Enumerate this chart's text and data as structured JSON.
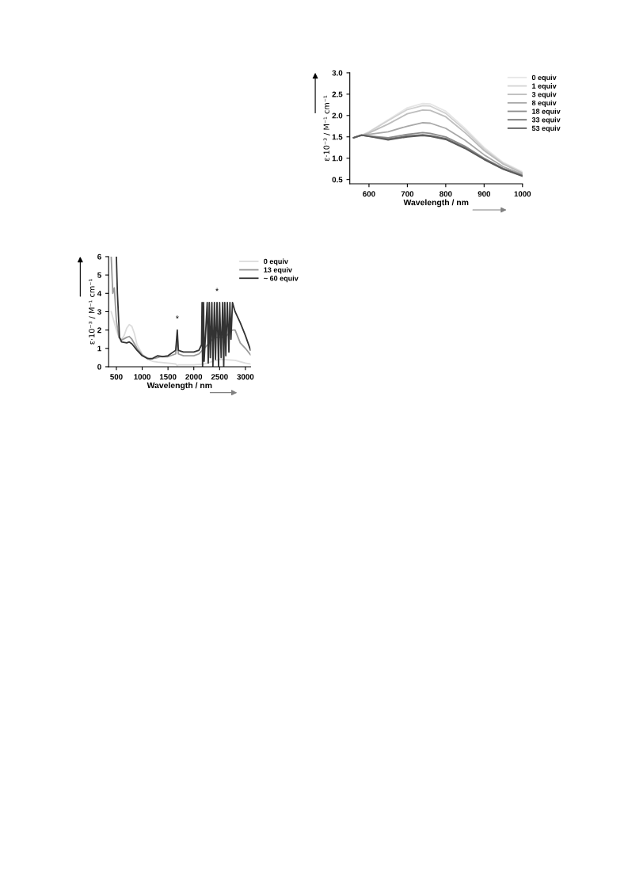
{
  "chart_data": [
    {
      "type": "line",
      "xlabel": "Wavelength / nm",
      "ylabel": "ε·10⁻³ / M⁻¹ cm⁻¹",
      "x": [
        560,
        580,
        600,
        650,
        700,
        740,
        760,
        800,
        850,
        900,
        950,
        1000
      ],
      "xlim": [
        550,
        1000
      ],
      "xticks": [
        600,
        700,
        800,
        900,
        1000
      ],
      "ylim": [
        0.4,
        3.0
      ],
      "yticks": [
        0.5,
        {
          "value": 1,
          "label": "1.0"
        },
        1.5,
        {
          "value": 2,
          "label": "2.0"
        },
        2.5,
        {
          "value": 3,
          "label": "3.0"
        }
      ],
      "legend": "top right",
      "grid": false,
      "series": [
        {
          "name": "0 equiv",
          "color": "#e6e6e6",
          "values": [
            1.48,
            1.53,
            1.62,
            1.9,
            2.18,
            2.28,
            2.27,
            2.1,
            1.7,
            1.25,
            0.9,
            0.68
          ]
        },
        {
          "name": "1 equiv",
          "color": "#d2d2d2",
          "values": [
            1.48,
            1.53,
            1.61,
            1.88,
            2.14,
            2.23,
            2.22,
            2.05,
            1.66,
            1.22,
            0.88,
            0.66
          ]
        },
        {
          "name": "3 equiv",
          "color": "#bdbdbd",
          "values": [
            1.48,
            1.53,
            1.59,
            1.8,
            2.04,
            2.13,
            2.12,
            1.97,
            1.6,
            1.18,
            0.86,
            0.65
          ]
        },
        {
          "name": "8 equiv",
          "color": "#a8a8a8",
          "values": [
            1.48,
            1.54,
            1.56,
            1.62,
            1.75,
            1.83,
            1.82,
            1.7,
            1.42,
            1.08,
            0.8,
            0.62
          ]
        },
        {
          "name": "18 equiv",
          "color": "#8c8c8c",
          "values": [
            1.48,
            1.54,
            1.52,
            1.48,
            1.56,
            1.6,
            1.58,
            1.5,
            1.28,
            1.0,
            0.76,
            0.6
          ]
        },
        {
          "name": "33 equiv",
          "color": "#737373",
          "values": [
            1.48,
            1.54,
            1.51,
            1.45,
            1.52,
            1.55,
            1.53,
            1.46,
            1.25,
            0.98,
            0.75,
            0.59
          ]
        },
        {
          "name": "53 equiv",
          "color": "#5a5a5a",
          "values": [
            1.48,
            1.54,
            1.51,
            1.43,
            1.5,
            1.53,
            1.51,
            1.44,
            1.23,
            0.97,
            0.74,
            0.58
          ]
        }
      ]
    },
    {
      "type": "line",
      "xlabel": "Wavelength / nm",
      "ylabel": "ε·10⁻³ / M⁻¹ cm⁻¹",
      "xlim": [
        350,
        3100
      ],
      "xticks": [
        500,
        1000,
        1500,
        2000,
        2500,
        3000
      ],
      "ylim": [
        0,
        6
      ],
      "yticks": [
        0,
        1,
        2,
        3,
        4,
        5,
        6
      ],
      "legend": "top right",
      "grid": false,
      "annotations": [
        {
          "text": "*",
          "x": 1680,
          "y": 2.0
        },
        {
          "text": "*",
          "x": 2450,
          "y": 3.5
        }
      ],
      "series": [
        {
          "name": "0 equiv",
          "color": "#dcdcdc",
          "x": [
            400,
            450,
            500,
            550,
            600,
            650,
            700,
            750,
            800,
            850,
            900,
            1000,
            1100,
            1200,
            1300,
            1500,
            1650,
            1680,
            1700,
            2000,
            2200,
            2500,
            2800,
            3000,
            3100
          ],
          "values": [
            3.0,
            2.5,
            2.0,
            1.6,
            1.5,
            1.7,
            2.1,
            2.3,
            2.2,
            1.8,
            1.2,
            0.7,
            0.4,
            0.3,
            0.25,
            0.2,
            0.15,
            0.05,
            0.1,
            0.1,
            0.15,
            0.4,
            0.35,
            0.2,
            0.15
          ]
        },
        {
          "name": "13 equiv",
          "color": "#9a9a9a",
          "x": [
            400,
            430,
            460,
            500,
            550,
            600,
            700,
            750,
            800,
            900,
            1000,
            1150,
            1300,
            1350,
            1500,
            1650,
            1680,
            1700,
            1800,
            2000,
            2100,
            2200,
            2400,
            2600,
            2750,
            2800,
            2900,
            3000,
            3100
          ],
          "values": [
            6.0,
            4.0,
            4.3,
            2.5,
            1.6,
            1.45,
            1.6,
            1.65,
            1.5,
            1.0,
            0.65,
            0.4,
            0.5,
            0.55,
            0.55,
            0.7,
            1.7,
            0.7,
            0.6,
            0.6,
            0.7,
            1.0,
            1.6,
            1.6,
            2.0,
            2.0,
            1.3,
            1.0,
            0.65
          ]
        },
        {
          "name": "~ 60 equiv",
          "color": "#333333",
          "x": [
            500,
            520,
            560,
            600,
            700,
            750,
            800,
            900,
            1000,
            1100,
            1200,
            1300,
            1400,
            1500,
            1650,
            1680,
            1700,
            1750,
            1800,
            2000,
            2100,
            2150,
            2160,
            2170,
            2190,
            2200,
            2260,
            2280,
            2300,
            2320,
            2350,
            2370,
            2400,
            2420,
            2450,
            2480,
            2500,
            2530,
            2560,
            2580,
            2600,
            2620,
            2650,
            2680,
            2700,
            2720,
            2750,
            2800,
            2900,
            3000,
            3100
          ],
          "values": [
            6.0,
            4.0,
            1.6,
            1.35,
            1.3,
            1.35,
            1.25,
            0.9,
            0.6,
            0.45,
            0.45,
            0.6,
            0.55,
            0.6,
            0.9,
            2.0,
            0.9,
            0.85,
            0.8,
            0.8,
            0.9,
            1.2,
            3.5,
            0,
            3.5,
            0.3,
            3.5,
            0.2,
            3.5,
            0.5,
            3.5,
            0,
            3.5,
            0.4,
            3.5,
            0,
            3.5,
            0.5,
            3.5,
            0,
            3.5,
            0.6,
            3.5,
            0.8,
            3.5,
            1.5,
            3.5,
            3.0,
            2.4,
            1.7,
            0.9
          ]
        }
      ]
    }
  ]
}
